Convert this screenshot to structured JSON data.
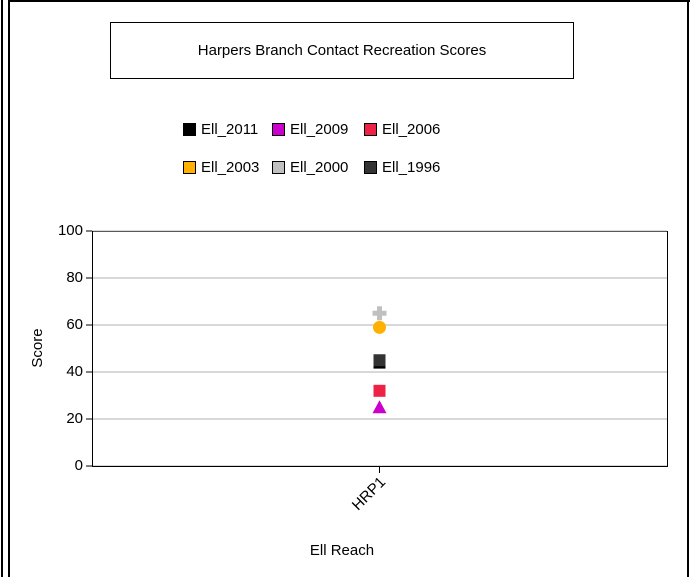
{
  "chart_data": {
    "type": "scatter",
    "title": "Harpers Branch Contact Recreation Scores",
    "x_label": "Ell Reach",
    "y_label": "Score",
    "categories": [
      "HRP1"
    ],
    "series": [
      {
        "name": "Ell_2011",
        "color": "#000000",
        "marker": "square",
        "values": [
          44
        ]
      },
      {
        "name": "Ell_2009",
        "color": "#cc00cc",
        "marker": "triangle",
        "values": [
          25
        ]
      },
      {
        "name": "Ell_2006",
        "color": "#ee2244",
        "marker": "square",
        "values": [
          32
        ]
      },
      {
        "name": "Ell_2003",
        "color": "#ffb000",
        "marker": "circle",
        "values": [
          59
        ]
      },
      {
        "name": "Ell_2000",
        "color": "#c0c0c0",
        "marker": "plus",
        "values": [
          65
        ]
      },
      {
        "name": "Ell_1996",
        "color": "#333333",
        "marker": "square",
        "values": [
          45
        ]
      }
    ],
    "ylim": [
      0,
      100
    ],
    "yticks": [
      0,
      20,
      40,
      60,
      80,
      100
    ],
    "grid": true
  }
}
